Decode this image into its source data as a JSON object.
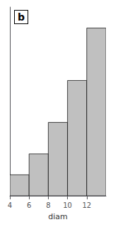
{
  "chart_data": {
    "type": "histogram",
    "xlabel": "diam",
    "bins": [
      4,
      6,
      8,
      10,
      12,
      14
    ],
    "values": [
      2,
      4,
      7,
      11,
      16
    ],
    "color": "#c0c0c0",
    "xlim": [
      4,
      14
    ],
    "ylim": [
      0,
      18
    ],
    "xticks": [
      4,
      6,
      8,
      10,
      12
    ],
    "annotations": [
      "b"
    ],
    "tick_labels": "x",
    "grid": false
  }
}
